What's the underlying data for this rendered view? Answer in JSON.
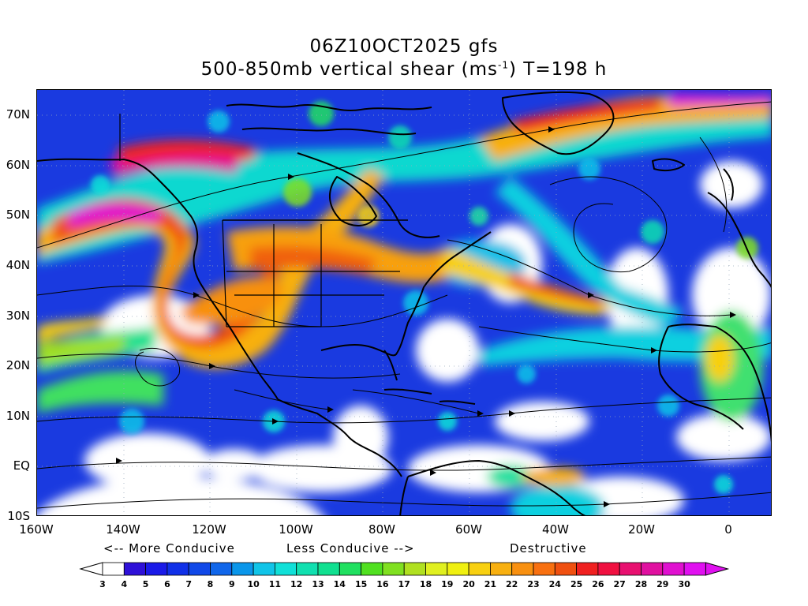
{
  "header": {
    "title_line1": "06Z10OCT2025 gfs",
    "title_line2_prefix": "500-850mb vertical shear (ms",
    "title_line2_sup": "-1",
    "title_line2_suffix": ") T=198 h"
  },
  "axes": {
    "lat_labels": [
      "70N",
      "60N",
      "50N",
      "40N",
      "30N",
      "20N",
      "10N",
      "EQ",
      "10S"
    ],
    "lon_labels": [
      "160W",
      "140W",
      "120W",
      "100W",
      "80W",
      "60W",
      "40W",
      "20W",
      "0"
    ],
    "lat_range": [
      -10,
      75
    ],
    "lon_range": [
      -160,
      10
    ]
  },
  "legend": {
    "more_conducive": "<-- More Conducive",
    "less_conducive": "Less Conducive -->",
    "destructive": "Destructive",
    "colorbar_ticks": [
      "3",
      "4",
      "5",
      "6",
      "7",
      "8",
      "9",
      "10",
      "11",
      "12",
      "13",
      "14",
      "15",
      "16",
      "17",
      "18",
      "19",
      "20",
      "21",
      "22",
      "23",
      "24",
      "25",
      "26",
      "27",
      "28",
      "29",
      "30"
    ],
    "colorbar_colors": [
      "#ffffff",
      "#2e10d8",
      "#1a1ae8",
      "#1030e8",
      "#1048e8",
      "#1066ea",
      "#0a96ea",
      "#10c4e8",
      "#10e0d8",
      "#10e0b0",
      "#10e090",
      "#20e060",
      "#50e020",
      "#80e020",
      "#b0e020",
      "#e0f020",
      "#f0f010",
      "#f8d010",
      "#f8b010",
      "#f89010",
      "#f87010",
      "#f05010",
      "#f02020",
      "#f01040",
      "#e81070",
      "#e010a0",
      "#e010d0",
      "#e010f0"
    ]
  },
  "colors": {
    "background": "#ffffff",
    "coastline": "#000000",
    "streamline": "#000000"
  }
}
